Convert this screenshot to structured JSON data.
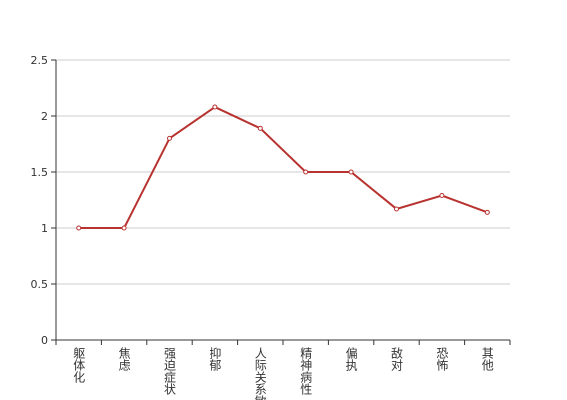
{
  "chart_data": {
    "type": "line",
    "categories": [
      "躯体化",
      "焦虑",
      "强迫症状",
      "抑郁",
      "人际关系敏感",
      "精神病性",
      "偏执",
      "敌对",
      "恐怖",
      "其他"
    ],
    "series": [
      {
        "color": "#b8322f",
        "values": [
          1,
          1,
          1.8,
          2.08,
          1.89,
          1.5,
          1.5,
          1.17,
          1.29,
          1.14
        ]
      }
    ],
    "ylim": [
      0,
      2.5
    ],
    "yticks": [
      0,
      0.5,
      1,
      1.5,
      2,
      2.5
    ],
    "grid": true
  }
}
